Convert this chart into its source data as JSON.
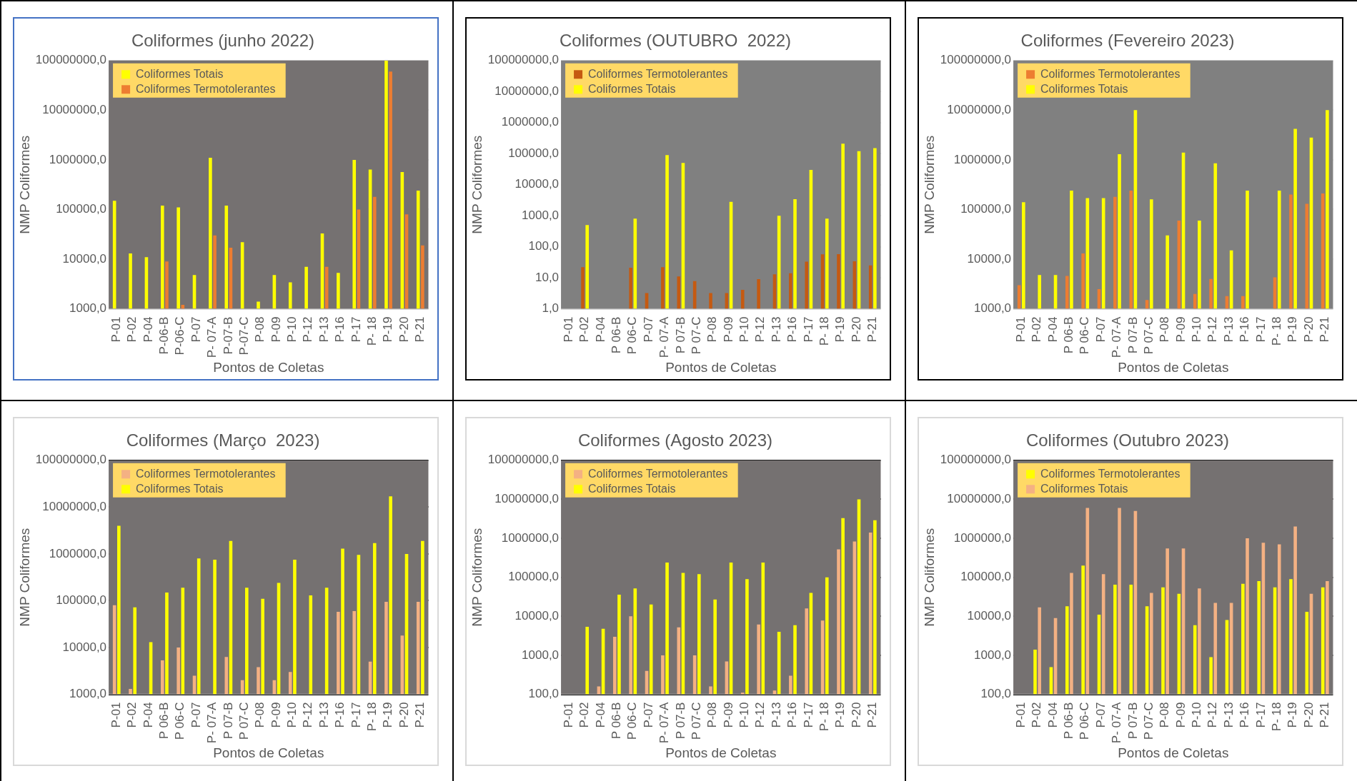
{
  "chart_data": [
    {
      "type": "bar",
      "title": "Coliformes (junho 2022)",
      "xlabel": "Pontos de Coletas",
      "ylabel": "NMP Coliformes",
      "categories": [
        "P-01",
        "P-02",
        "P-04",
        "P-06-B",
        "P-06-C",
        "P-07",
        "P- 07-A",
        "P-07-B",
        "P-07-C",
        "P-08",
        "P-09",
        "P-10",
        "P-12",
        "P-13",
        "P-16",
        "P-17",
        "P- 18",
        "P-19",
        "P-20",
        "P-21"
      ],
      "series": [
        {
          "name": "Coliformes Totais",
          "color": "#ffff00",
          "values": [
            150000,
            13000,
            11000,
            120000,
            110000,
            4800,
            1100000,
            120000,
            22000,
            1400,
            4800,
            3400,
            7000,
            33000,
            5300,
            1000000,
            640000,
            100000000,
            570000,
            240000
          ]
        },
        {
          "name": "Coliformes Termotolerantes",
          "color": "#ed7d31",
          "values": [
            null,
            null,
            null,
            9000,
            1200,
            null,
            30000,
            17000,
            null,
            null,
            null,
            null,
            null,
            7000,
            null,
            100000,
            180000,
            60000000,
            80000,
            19000
          ]
        }
      ],
      "log": true,
      "ylim": [
        1000,
        100000000
      ],
      "yticks": [
        {
          "value": 1000,
          "label": "1000,0"
        },
        {
          "value": 10000,
          "label": "10000,0"
        },
        {
          "value": 100000,
          "label": "100000,0"
        },
        {
          "value": 1000000,
          "label": "1000000,0"
        },
        {
          "value": 10000000,
          "label": "10000000,0"
        },
        {
          "value": 100000000,
          "label": "100000000,0"
        }
      ],
      "grid": "y",
      "legend": "top left"
    },
    {
      "type": "bar",
      "title": "Coliformes (OUTUBRO  2022)",
      "xlabel": "Pontos de Coletas",
      "ylabel": "NMP Coliformes",
      "categories": [
        "P-01",
        "P-02",
        "P-04",
        "P 06-B",
        "P 06-C",
        "P-07",
        "P- 07-A",
        "P 07-B",
        "P 07-C",
        "P-08",
        "P-09",
        "P-10",
        "P-12",
        "P-13",
        "P-16",
        "P-17",
        "P- 18",
        "P-19",
        "P-20",
        "P-21"
      ],
      "series": [
        {
          "name": "Coliformes Termotolerantes",
          "color": "#c55a11",
          "values": [
            null,
            22,
            null,
            null,
            21,
            3.2,
            22,
            11,
            7.8,
            3.2,
            3.2,
            4.1,
            9,
            13,
            14,
            33,
            57,
            58,
            34,
            25
          ]
        },
        {
          "name": "Coliformes Totais",
          "color": "#ffff00",
          "values": [
            null,
            500,
            null,
            null,
            800,
            null,
            90000,
            50000,
            null,
            null,
            2800,
            null,
            null,
            1000,
            3400,
            30000,
            800,
            210000,
            120000,
            150000
          ]
        }
      ],
      "log": true,
      "ylim": [
        1,
        100000000
      ],
      "yticks": [
        {
          "value": 1,
          "label": "1,0"
        },
        {
          "value": 10,
          "label": "10,0"
        },
        {
          "value": 100,
          "label": "100,0"
        },
        {
          "value": 1000,
          "label": "1000,0"
        },
        {
          "value": 10000,
          "label": "10000,0"
        },
        {
          "value": 100000,
          "label": "100000,0"
        },
        {
          "value": 1000000,
          "label": "1000000,0"
        },
        {
          "value": 10000000,
          "label": "10000000,0"
        },
        {
          "value": 100000000,
          "label": "100000000,0"
        }
      ],
      "grid": "y",
      "legend": "top left"
    },
    {
      "type": "bar",
      "title": "Coliformes (Fevereiro 2023)",
      "xlabel": "Pontos de Coletas",
      "ylabel": "NMP Coliformes",
      "categories": [
        "P-01",
        "P-02",
        "P-04",
        "P 06-B",
        "P 06-C",
        "P-07",
        "P- 07-A",
        "P 07-B",
        "P 07-C",
        "P-08",
        "P-09",
        "P-10",
        "P-12",
        "P-13",
        "P-16",
        "P-17",
        "P- 18",
        "P-19",
        "P-20",
        "P-21"
      ],
      "series": [
        {
          "name": "Coliformes Termotolerantes",
          "color": "#ed7d31",
          "values": [
            3000,
            null,
            null,
            4600,
            13000,
            2500,
            180000,
            240000,
            1500,
            null,
            60000,
            2000,
            4000,
            1800,
            1800,
            null,
            4300,
            200000,
            130000,
            210000
          ]
        },
        {
          "name": "Coliformes Totais",
          "color": "#ffff00",
          "values": [
            140000,
            4800,
            4800,
            240000,
            170000,
            170000,
            1300000,
            10000000,
            160000,
            30000,
            1400000,
            60000,
            850000,
            15000,
            240000,
            null,
            240000,
            4200000,
            2800000,
            10000000
          ]
        }
      ],
      "log": true,
      "ylim": [
        1000,
        100000000
      ],
      "yticks": [
        {
          "value": 1000,
          "label": "1000,0"
        },
        {
          "value": 10000,
          "label": "10000,0"
        },
        {
          "value": 100000,
          "label": "100000,0"
        },
        {
          "value": 1000000,
          "label": "1000000,0"
        },
        {
          "value": 10000000,
          "label": "10000000,0"
        },
        {
          "value": 100000000,
          "label": "100000000,0"
        }
      ],
      "grid": "y",
      "legend": "top left"
    },
    {
      "type": "bar",
      "title": "Coliformes (Março  2023)",
      "xlabel": "Pontos de Coletas",
      "ylabel": "NMP Coliformes",
      "categories": [
        "P-01",
        "P-02",
        "P-04",
        "P 06-B",
        "P 06-C",
        "P-07",
        "P- 07-A",
        "P 07-B",
        "P 07-C",
        "P-08",
        "P-09",
        "P-10",
        "P-12",
        "P-13",
        "P-16",
        "P-17",
        "P- 18",
        "P-19",
        "P-20",
        "P-21"
      ],
      "series": [
        {
          "name": "Coliformes Termotolerantes",
          "color": "#f4b183",
          "values": [
            80000,
            1300,
            null,
            5300,
            10000,
            2500,
            null,
            6300,
            2000,
            3800,
            2000,
            3000,
            null,
            null,
            58000,
            60000,
            5000,
            95000,
            18000,
            95000
          ]
        },
        {
          "name": "Coliformes Totais",
          "color": "#ffff00",
          "values": [
            4000000,
            72000,
            13000,
            150000,
            190000,
            800000,
            750000,
            1900000,
            190000,
            110000,
            240000,
            750000,
            130000,
            190000,
            1300000,
            950000,
            1700000,
            17000000,
            1000000,
            1900000
          ]
        }
      ],
      "log": true,
      "ylim": [
        1000,
        100000000
      ],
      "yticks": [
        {
          "value": 1000,
          "label": "1000,0"
        },
        {
          "value": 10000,
          "label": "10000,0"
        },
        {
          "value": 100000,
          "label": "100000,0"
        },
        {
          "value": 1000000,
          "label": "1000000,0"
        },
        {
          "value": 10000000,
          "label": "10000000,0"
        },
        {
          "value": 100000000,
          "label": "100000000,0"
        }
      ],
      "grid": "y",
      "legend": "top left"
    },
    {
      "type": "bar",
      "title": "Coliformes (Agosto 2023)",
      "xlabel": "Pontos de Coletas",
      "ylabel": "NMP Coliformes",
      "categories": [
        "P-01",
        "P-02",
        "P-04",
        "P 06-B",
        "P 06-C",
        "P-07",
        "P- 07-A",
        "P 07-B",
        "P 07-C",
        "P-08",
        "P-09",
        "P-10",
        "P-12",
        "P-13",
        "P-16",
        "P-17",
        "P- 18",
        "P-19",
        "P-20",
        "P-21"
      ],
      "series": [
        {
          "name": "Coliformes Termotolerantes",
          "color": "#f4b183",
          "values": [
            null,
            null,
            160,
            3000,
            10000,
            400,
            1000,
            5200,
            1000,
            160,
            700,
            110,
            6200,
            125,
            300,
            16000,
            7800,
            520000,
            830000,
            1400000
          ]
        },
        {
          "name": "Coliformes Totais",
          "color": "#ffff00",
          "values": [
            null,
            5400,
            4800,
            36000,
            52000,
            20000,
            240000,
            130000,
            120000,
            27000,
            240000,
            90000,
            240000,
            4000,
            5900,
            40000,
            100000,
            3300000,
            10000000,
            2900000
          ]
        }
      ],
      "log": true,
      "ylim": [
        100,
        100000000
      ],
      "yticks": [
        {
          "value": 100,
          "label": "100,0"
        },
        {
          "value": 1000,
          "label": "1000,0"
        },
        {
          "value": 10000,
          "label": "10000,0"
        },
        {
          "value": 100000,
          "label": "100000,0"
        },
        {
          "value": 1000000,
          "label": "1000000,0"
        },
        {
          "value": 10000000,
          "label": "10000000,0"
        },
        {
          "value": 100000000,
          "label": "100000000,0"
        }
      ],
      "grid": "y",
      "legend": "top left"
    },
    {
      "type": "bar",
      "title": "Coliformes (Outubro 2023)",
      "xlabel": "Pontos de Coletas",
      "ylabel": "NMP Coliformes",
      "categories": [
        "P-01",
        "P-02",
        "P-04",
        "P 06-B",
        "P 06-C",
        "P-07",
        "P- 07-A",
        "P 07-B",
        "P 07-C",
        "P-08",
        "P-09",
        "P-10",
        "P-12",
        "P-13",
        "P-16",
        "P-17",
        "P- 18",
        "P-19",
        "P-20",
        "P-21"
      ],
      "series": [
        {
          "name": "Coliformes Termotolerantes",
          "color": "#ffff00",
          "values": [
            null,
            1400,
            500,
            18000,
            200000,
            11000,
            65000,
            65000,
            18000,
            55000,
            38000,
            5900,
            900,
            8000,
            68000,
            80000,
            55000,
            90000,
            13000,
            55000
          ]
        },
        {
          "name": "Coliformes Totais",
          "color": "#f4b183",
          "values": [
            null,
            17000,
            9000,
            130000,
            6000000,
            120000,
            6000000,
            5000000,
            40000,
            550000,
            550000,
            52000,
            22000,
            22000,
            1000000,
            770000,
            700000,
            2000000,
            38000,
            80000
          ]
        }
      ],
      "log": true,
      "ylim": [
        100,
        100000000
      ],
      "yticks": [
        {
          "value": 100,
          "label": "100,0"
        },
        {
          "value": 1000,
          "label": "1000,0"
        },
        {
          "value": 10000,
          "label": "10000,0"
        },
        {
          "value": 100000,
          "label": "100000,0"
        },
        {
          "value": 1000000,
          "label": "1000000,0"
        },
        {
          "value": 10000000,
          "label": "10000000,0"
        },
        {
          "value": 100000000,
          "label": "100000000,0"
        }
      ],
      "grid": "y",
      "legend": "top left"
    }
  ]
}
